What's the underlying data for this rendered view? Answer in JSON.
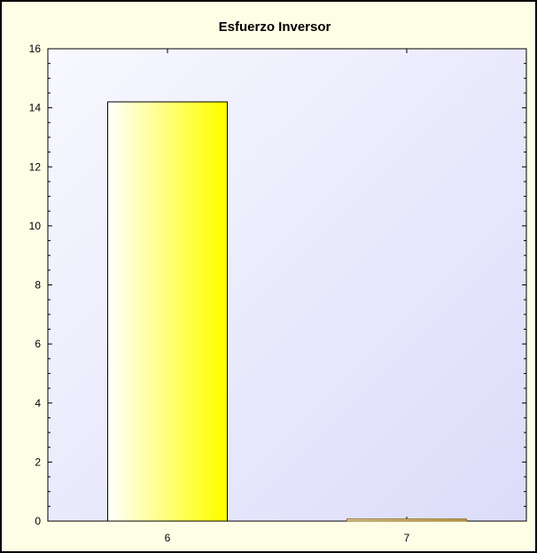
{
  "chart_data": {
    "type": "bar",
    "title": "Esfuerzo Inversor",
    "xlabel": "",
    "ylabel": "",
    "categories": [
      "6",
      "7"
    ],
    "values": [
      14.2,
      0.07
    ],
    "ylim": [
      0,
      16
    ],
    "yticks": [
      "0",
      "2",
      "4",
      "6",
      "8",
      "10",
      "12",
      "14",
      "16"
    ],
    "grid": false,
    "colors": {
      "bar_6": "#ffff00",
      "bar_7": "#c8a850",
      "plot_background": "#dcdcff",
      "frame_background": "#fefee6"
    }
  }
}
